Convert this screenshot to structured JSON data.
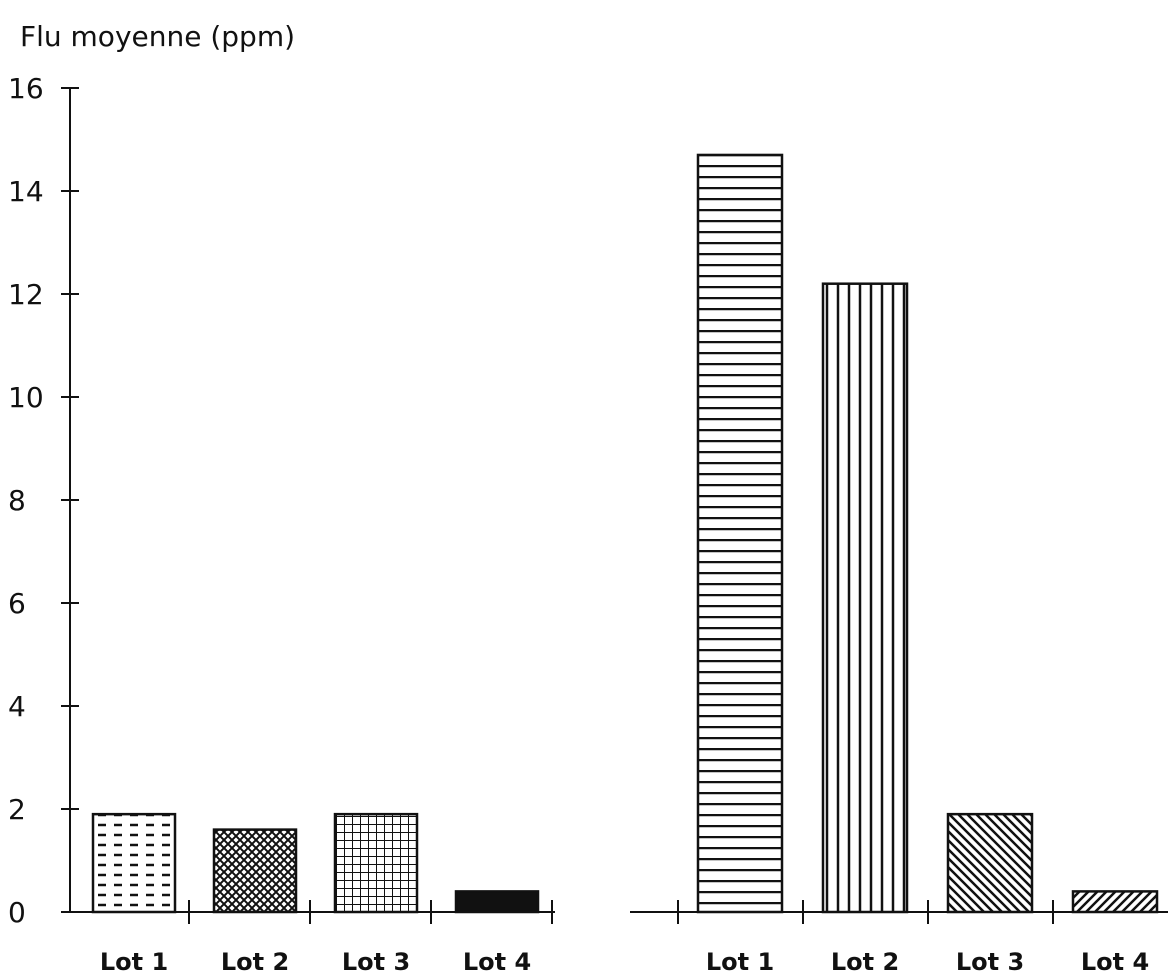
{
  "chart_data": {
    "type": "bar",
    "ylabel": "Flu moyenne (ppm)",
    "yticks": [
      "0",
      "2",
      "4",
      "6",
      "8",
      "10",
      "12",
      "14",
      "16"
    ],
    "ylim": [
      0,
      16
    ],
    "grid": false,
    "groups": [
      {
        "categories": [
          "Lot 1",
          "Lot 2",
          "Lot 3",
          "Lot 4"
        ],
        "values": [
          1.9,
          1.6,
          1.9,
          0.4
        ],
        "patterns": [
          "dashes",
          "crosshatch",
          "grid",
          "solid"
        ]
      },
      {
        "categories": [
          "Lot 1",
          "Lot 2",
          "Lot 3",
          "Lot 4"
        ],
        "values": [
          14.7,
          12.2,
          1.9,
          0.4
        ],
        "patterns": [
          "horizontal-lines",
          "vertical-lines",
          "diagonal-back",
          "diagonal-forward"
        ]
      }
    ]
  },
  "colors": {
    "ink": "#111111",
    "background": "#ffffff"
  }
}
